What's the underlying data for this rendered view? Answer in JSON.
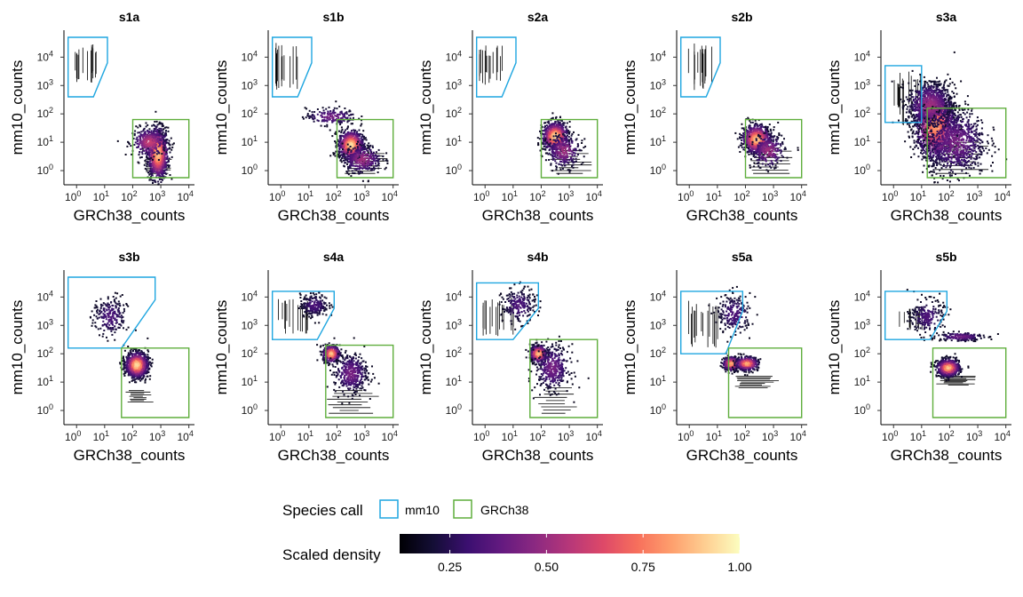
{
  "chart_data": {
    "type": "scatter",
    "density_colormap": "magma",
    "x_scale": "log",
    "y_scale": "log",
    "xlabel": "GRCh38_counts",
    "ylabel": "mm10_counts",
    "xlim_log10": [
      -0.45,
      4.2
    ],
    "ylim_log10": [
      -0.5,
      4.95
    ],
    "x_ticks": [
      {
        "exp": 0,
        "base": "10",
        "sup": "0"
      },
      {
        "exp": 1,
        "base": "10",
        "sup": "1"
      },
      {
        "exp": 2,
        "base": "10",
        "sup": "2"
      },
      {
        "exp": 3,
        "base": "10",
        "sup": "3"
      },
      {
        "exp": 4,
        "base": "10",
        "sup": "4"
      }
    ],
    "y_ticks": [
      {
        "exp": 0,
        "base": "10",
        "sup": "0"
      },
      {
        "exp": 1,
        "base": "10",
        "sup": "1"
      },
      {
        "exp": 2,
        "base": "10",
        "sup": "2"
      },
      {
        "exp": 3,
        "base": "10",
        "sup": "3"
      },
      {
        "exp": 4,
        "base": "10",
        "sup": "4"
      }
    ],
    "colors": {
      "mm10": "#1fa6e0",
      "GRCh38": "#5fae3c"
    },
    "panels": [
      {
        "id": "s1a",
        "mm10_gate_log10": [
          [
            -0.3,
            4.7
          ],
          [
            1.1,
            4.7
          ],
          [
            1.1,
            3.8
          ],
          [
            0.6,
            2.6
          ],
          [
            -0.3,
            2.6
          ]
        ],
        "grch38_gate_log10": [
          [
            2.0,
            -0.25
          ],
          [
            4.0,
            -0.25
          ],
          [
            4.0,
            1.8
          ],
          [
            2.0,
            1.8
          ]
        ],
        "clusters_log10": [
          {
            "x": 2.9,
            "y": 0.6,
            "sx": 0.18,
            "sy": 0.45,
            "n": 2200,
            "peak": 0.85
          },
          {
            "x": 2.6,
            "y": 1.0,
            "sx": 0.3,
            "sy": 0.25,
            "n": 700,
            "peak": 0.5
          }
        ],
        "mm10_stripes_log10": [
          {
            "x0": -0.2,
            "x1": 0.7,
            "y0": 3.0,
            "y1": 4.5
          }
        ],
        "stripes_log10": [
          {
            "x0": 2.3,
            "x1": 3.4,
            "y0": -0.1,
            "y1": 0.4
          }
        ]
      },
      {
        "id": "s1b",
        "mm10_gate_log10": [
          [
            -0.3,
            4.7
          ],
          [
            1.1,
            4.7
          ],
          [
            1.1,
            3.8
          ],
          [
            0.6,
            2.6
          ],
          [
            -0.3,
            2.6
          ]
        ],
        "grch38_gate_log10": [
          [
            2.0,
            -0.25
          ],
          [
            4.0,
            -0.25
          ],
          [
            4.0,
            1.8
          ],
          [
            2.0,
            1.8
          ]
        ],
        "clusters_log10": [
          {
            "x": 2.5,
            "y": 0.9,
            "sx": 0.22,
            "sy": 0.25,
            "n": 2000,
            "peak": 0.9
          },
          {
            "x": 1.8,
            "y": 1.9,
            "sx": 0.45,
            "sy": 0.15,
            "n": 400,
            "peak": 0.3
          },
          {
            "x": 2.9,
            "y": 0.4,
            "sx": 0.35,
            "sy": 0.25,
            "n": 700,
            "peak": 0.4
          }
        ],
        "mm10_stripes_log10": [
          {
            "x0": -0.2,
            "x1": 0.6,
            "y0": 2.8,
            "y1": 4.5
          }
        ],
        "stripes_log10": [
          {
            "x0": 2.2,
            "x1": 3.8,
            "y0": -0.1,
            "y1": 0.6
          }
        ]
      },
      {
        "id": "s2a",
        "mm10_gate_log10": [
          [
            -0.3,
            4.7
          ],
          [
            1.1,
            4.7
          ],
          [
            1.1,
            3.8
          ],
          [
            0.6,
            2.6
          ],
          [
            -0.3,
            2.6
          ]
        ],
        "grch38_gate_log10": [
          [
            2.0,
            -0.25
          ],
          [
            4.0,
            -0.25
          ],
          [
            4.0,
            1.8
          ],
          [
            2.0,
            1.8
          ]
        ],
        "clusters_log10": [
          {
            "x": 2.5,
            "y": 1.2,
            "sx": 0.22,
            "sy": 0.25,
            "n": 1800,
            "peak": 0.9
          },
          {
            "x": 2.8,
            "y": 0.7,
            "sx": 0.3,
            "sy": 0.3,
            "n": 600,
            "peak": 0.4
          }
        ],
        "mm10_stripes_log10": [
          {
            "x0": -0.2,
            "x1": 0.7,
            "y0": 2.9,
            "y1": 4.5
          }
        ],
        "stripes_log10": [
          {
            "x0": 2.3,
            "x1": 3.8,
            "y0": -0.1,
            "y1": 0.7
          }
        ]
      },
      {
        "id": "s2b",
        "mm10_gate_log10": [
          [
            -0.3,
            4.7
          ],
          [
            1.1,
            4.7
          ],
          [
            1.1,
            3.8
          ],
          [
            0.6,
            2.6
          ],
          [
            -0.3,
            2.6
          ]
        ],
        "grch38_gate_log10": [
          [
            2.0,
            -0.25
          ],
          [
            4.0,
            -0.25
          ],
          [
            4.0,
            1.8
          ],
          [
            2.0,
            1.8
          ]
        ],
        "clusters_log10": [
          {
            "x": 2.4,
            "y": 1.1,
            "sx": 0.25,
            "sy": 0.25,
            "n": 1800,
            "peak": 0.85
          },
          {
            "x": 2.8,
            "y": 0.7,
            "sx": 0.3,
            "sy": 0.3,
            "n": 600,
            "peak": 0.4
          }
        ],
        "mm10_stripes_log10": [
          {
            "x0": -0.2,
            "x1": 0.8,
            "y0": 2.8,
            "y1": 4.5
          }
        ],
        "stripes_log10": [
          {
            "x0": 2.1,
            "x1": 3.8,
            "y0": -0.1,
            "y1": 0.8
          }
        ]
      },
      {
        "id": "s3a",
        "mm10_gate_log10": [
          [
            -0.3,
            3.7
          ],
          [
            1.0,
            3.7
          ],
          [
            1.0,
            1.7
          ],
          [
            -0.3,
            1.7
          ]
        ],
        "grch38_gate_log10": [
          [
            1.2,
            -0.25
          ],
          [
            4.0,
            -0.25
          ],
          [
            4.0,
            2.2
          ],
          [
            1.2,
            2.2
          ]
        ],
        "clusters_log10": [
          {
            "x": 1.5,
            "y": 1.6,
            "sx": 0.35,
            "sy": 0.6,
            "n": 3800,
            "peak": 0.75
          },
          {
            "x": 1.3,
            "y": 2.3,
            "sx": 0.4,
            "sy": 0.4,
            "n": 1500,
            "peak": 0.4
          },
          {
            "x": 2.2,
            "y": 1.0,
            "sx": 0.55,
            "sy": 0.6,
            "n": 1800,
            "peak": 0.3
          }
        ],
        "mm10_stripes_log10": [
          {
            "x0": 0.0,
            "x1": 1.0,
            "y0": 1.6,
            "y1": 3.5
          }
        ],
        "stripes_log10": [
          {
            "x0": 1.3,
            "x1": 3.5,
            "y0": -0.1,
            "y1": 1.0
          }
        ]
      },
      {
        "id": "s3b",
        "mm10_gate_log10": [
          [
            -0.3,
            4.7
          ],
          [
            2.8,
            4.7
          ],
          [
            2.8,
            3.9
          ],
          [
            1.6,
            2.2
          ],
          [
            -0.3,
            2.2
          ]
        ],
        "grch38_gate_log10": [
          [
            1.6,
            -0.25
          ],
          [
            4.0,
            -0.25
          ],
          [
            4.0,
            2.2
          ],
          [
            1.6,
            2.2
          ]
        ],
        "clusters_log10": [
          {
            "x": 2.15,
            "y": 1.6,
            "sx": 0.2,
            "sy": 0.22,
            "n": 2200,
            "peak": 0.9
          },
          {
            "x": 1.2,
            "y": 3.3,
            "sx": 0.3,
            "sy": 0.35,
            "n": 500,
            "peak": 0.2
          }
        ],
        "mm10_stripes_log10": [],
        "stripes_log10": [
          {
            "x0": 1.7,
            "x1": 2.8,
            "y0": 0.3,
            "y1": 0.7
          }
        ]
      },
      {
        "id": "s4a",
        "mm10_gate_log10": [
          [
            -0.3,
            4.2
          ],
          [
            1.9,
            4.2
          ],
          [
            1.9,
            3.6
          ],
          [
            1.3,
            2.5
          ],
          [
            -0.3,
            2.5
          ]
        ],
        "grch38_gate_log10": [
          [
            1.6,
            -0.25
          ],
          [
            4.0,
            -0.25
          ],
          [
            4.0,
            2.3
          ],
          [
            1.6,
            2.3
          ]
        ],
        "clusters_log10": [
          {
            "x": 1.8,
            "y": 2.0,
            "sx": 0.15,
            "sy": 0.15,
            "n": 900,
            "peak": 0.85
          },
          {
            "x": 2.5,
            "y": 1.3,
            "sx": 0.3,
            "sy": 0.35,
            "n": 900,
            "peak": 0.3
          },
          {
            "x": 1.2,
            "y": 3.7,
            "sx": 0.25,
            "sy": 0.2,
            "n": 500,
            "peak": 0.2
          }
        ],
        "mm10_stripes_log10": [
          {
            "x0": -0.1,
            "x1": 1.0,
            "y0": 2.7,
            "y1": 4.0
          }
        ],
        "stripes_log10": [
          {
            "x0": 1.6,
            "x1": 3.5,
            "y0": -0.1,
            "y1": 0.7
          }
        ]
      },
      {
        "id": "s4b",
        "mm10_gate_log10": [
          [
            -0.3,
            4.5
          ],
          [
            1.9,
            4.5
          ],
          [
            1.9,
            3.6
          ],
          [
            1.0,
            2.5
          ],
          [
            -0.3,
            2.5
          ]
        ],
        "grch38_gate_log10": [
          [
            1.6,
            -0.25
          ],
          [
            4.0,
            -0.25
          ],
          [
            4.0,
            2.5
          ],
          [
            1.6,
            2.5
          ]
        ],
        "clusters_log10": [
          {
            "x": 1.9,
            "y": 2.0,
            "sx": 0.15,
            "sy": 0.15,
            "n": 900,
            "peak": 0.85
          },
          {
            "x": 2.4,
            "y": 1.5,
            "sx": 0.3,
            "sy": 0.4,
            "n": 900,
            "peak": 0.3
          },
          {
            "x": 1.2,
            "y": 3.7,
            "sx": 0.3,
            "sy": 0.3,
            "n": 500,
            "peak": 0.2
          }
        ],
        "mm10_stripes_log10": [
          {
            "x0": -0.1,
            "x1": 1.1,
            "y0": 2.6,
            "y1": 4.0
          }
        ],
        "stripes_log10": [
          {
            "x0": 1.7,
            "x1": 3.5,
            "y0": -0.1,
            "y1": 0.8
          }
        ]
      },
      {
        "id": "s5a",
        "mm10_gate_log10": [
          [
            -0.3,
            4.2
          ],
          [
            1.9,
            4.2
          ],
          [
            1.9,
            3.5
          ],
          [
            1.3,
            2.0
          ],
          [
            -0.3,
            2.0
          ]
        ],
        "grch38_gate_log10": [
          [
            1.4,
            -0.25
          ],
          [
            4.0,
            -0.25
          ],
          [
            4.0,
            2.2
          ],
          [
            1.4,
            2.2
          ]
        ],
        "clusters_log10": [
          {
            "x": 1.5,
            "y": 1.65,
            "sx": 0.15,
            "sy": 0.12,
            "n": 900,
            "peak": 0.8
          },
          {
            "x": 2.05,
            "y": 1.65,
            "sx": 0.2,
            "sy": 0.12,
            "n": 900,
            "peak": 0.8
          },
          {
            "x": 1.6,
            "y": 3.4,
            "sx": 0.3,
            "sy": 0.35,
            "n": 500,
            "peak": 0.2
          }
        ],
        "mm10_stripes_log10": [
          {
            "x0": -0.1,
            "x1": 1.1,
            "y0": 2.2,
            "y1": 3.9
          }
        ],
        "stripes_log10": [
          {
            "x0": 1.5,
            "x1": 3.2,
            "y0": 0.8,
            "y1": 1.2
          }
        ]
      },
      {
        "id": "s5b",
        "mm10_gate_log10": [
          [
            -0.3,
            4.2
          ],
          [
            1.9,
            4.2
          ],
          [
            1.9,
            3.5
          ],
          [
            1.3,
            2.5
          ],
          [
            -0.3,
            2.5
          ]
        ],
        "grch38_gate_log10": [
          [
            1.4,
            -0.25
          ],
          [
            4.0,
            -0.25
          ],
          [
            4.0,
            2.2
          ],
          [
            1.4,
            2.2
          ]
        ],
        "clusters_log10": [
          {
            "x": 1.95,
            "y": 1.5,
            "sx": 0.2,
            "sy": 0.15,
            "n": 1600,
            "peak": 0.85
          },
          {
            "x": 2.4,
            "y": 2.6,
            "sx": 0.4,
            "sy": 0.08,
            "n": 400,
            "peak": 0.3
          },
          {
            "x": 1.2,
            "y": 3.3,
            "sx": 0.3,
            "sy": 0.3,
            "n": 500,
            "peak": 0.2
          }
        ],
        "mm10_stripes_log10": [
          {
            "x0": 0.1,
            "x1": 1.3,
            "y0": 2.8,
            "y1": 3.6
          }
        ],
        "stripes_log10": [
          {
            "x0": 1.5,
            "x1": 3.0,
            "y0": 0.9,
            "y1": 1.2
          }
        ]
      }
    ],
    "legend": {
      "species_title": "Species call",
      "species_items": [
        {
          "label": "mm10",
          "color": "#1fa6e0"
        },
        {
          "label": "GRCh38",
          "color": "#5fae3c"
        }
      ],
      "density_title": "Scaled density",
      "density_ticks": [
        {
          "value": 0.25,
          "label": "0.25"
        },
        {
          "value": 0.5,
          "label": "0.50"
        },
        {
          "value": 0.75,
          "label": "0.75"
        },
        {
          "value": 1.0,
          "label": "1.00"
        }
      ],
      "density_range": [
        0.12,
        1.0
      ]
    }
  }
}
